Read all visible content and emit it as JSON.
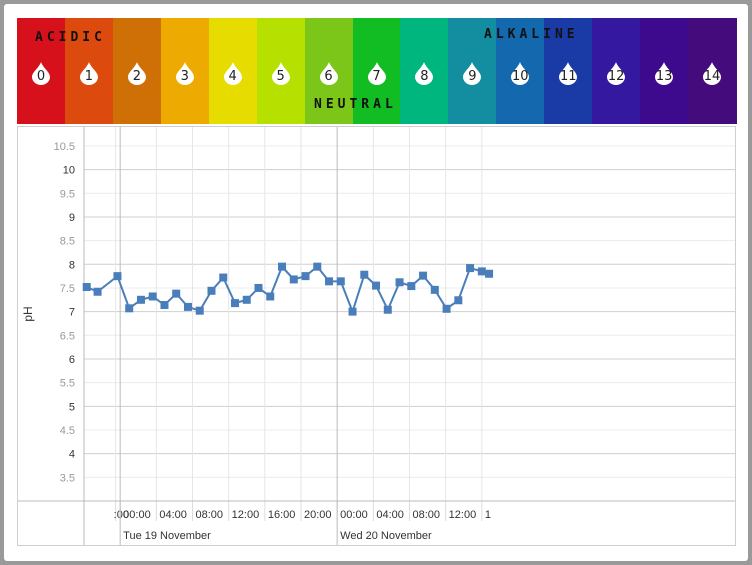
{
  "scale": {
    "acidic_label": "ACIDIC",
    "neutral_label": "NEUTRAL",
    "alkaline_label": "ALKALINE",
    "levels": [
      {
        "n": "0",
        "color": "#d7111c"
      },
      {
        "n": "1",
        "color": "#dc4a0d"
      },
      {
        "n": "2",
        "color": "#cf7007"
      },
      {
        "n": "3",
        "color": "#edaa00"
      },
      {
        "n": "4",
        "color": "#e6dc00"
      },
      {
        "n": "5",
        "color": "#b6e000"
      },
      {
        "n": "6",
        "color": "#7cc61a"
      },
      {
        "n": "7",
        "color": "#12bc23"
      },
      {
        "n": "8",
        "color": "#00b67f"
      },
      {
        "n": "9",
        "color": "#138ea1"
      },
      {
        "n": "10",
        "color": "#1368ae"
      },
      {
        "n": "11",
        "color": "#1a3aa6"
      },
      {
        "n": "12",
        "color": "#3418a0"
      },
      {
        "n": "13",
        "color": "#3d0a8e"
      },
      {
        "n": "14",
        "color": "#430b7c"
      }
    ]
  },
  "chart_data": {
    "type": "line",
    "ylabel": "pH",
    "ylim": [
      3,
      10.9
    ],
    "y_ticks": [
      "3.5",
      "4",
      "4.5",
      "5",
      "5.5",
      "6",
      "6.5",
      "7",
      "7.5",
      "8",
      "8.5",
      "9",
      "9.5",
      "10",
      "10.5"
    ],
    "x_range_hours": [
      -4,
      68
    ],
    "x_ticks": [
      {
        "label": ":00",
        "h": -0.5
      },
      {
        "label": "00:00",
        "h": 0
      },
      {
        "label": "04:00",
        "h": 4
      },
      {
        "label": "08:00",
        "h": 8
      },
      {
        "label": "12:00",
        "h": 12
      },
      {
        "label": "16:00",
        "h": 16
      },
      {
        "label": "20:00",
        "h": 20
      },
      {
        "label": "00:00",
        "h": 24
      },
      {
        "label": "04:00",
        "h": 28
      },
      {
        "label": "08:00",
        "h": 32
      },
      {
        "label": "12:00",
        "h": 36
      },
      {
        "label": "1",
        "h": 40
      }
    ],
    "day_labels": [
      {
        "label": "Tue 19 November",
        "h": 0
      },
      {
        "label": "Wed 20 November",
        "h": 24
      }
    ],
    "color": "#4a7ebb",
    "series": [
      {
        "points": [
          [
            -3.7,
            7.52
          ],
          [
            -2.5,
            7.42
          ],
          [
            -0.3,
            7.75
          ],
          [
            1.0,
            7.07
          ],
          [
            2.3,
            7.25
          ],
          [
            3.6,
            7.32
          ],
          [
            4.9,
            7.14
          ],
          [
            6.2,
            7.38
          ],
          [
            7.5,
            7.1
          ],
          [
            8.8,
            7.02
          ],
          [
            10.1,
            7.44
          ],
          [
            11.4,
            7.72
          ],
          [
            12.7,
            7.18
          ],
          [
            14.0,
            7.25
          ],
          [
            15.3,
            7.5
          ],
          [
            16.6,
            7.32
          ],
          [
            17.9,
            7.95
          ],
          [
            19.2,
            7.68
          ],
          [
            20.5,
            7.75
          ],
          [
            21.8,
            7.95
          ],
          [
            23.1,
            7.64
          ],
          [
            24.4,
            7.64
          ],
          [
            25.7,
            7.0
          ],
          [
            27.0,
            7.78
          ],
          [
            28.3,
            7.55
          ],
          [
            29.6,
            7.04
          ],
          [
            30.9,
            7.62
          ],
          [
            32.2,
            7.54
          ],
          [
            33.5,
            7.76
          ],
          [
            34.8,
            7.46
          ],
          [
            36.1,
            7.06
          ],
          [
            37.4,
            7.24
          ],
          [
            38.7,
            7.92
          ],
          [
            40.0,
            7.85
          ],
          [
            40.8,
            7.8
          ]
        ]
      }
    ]
  }
}
